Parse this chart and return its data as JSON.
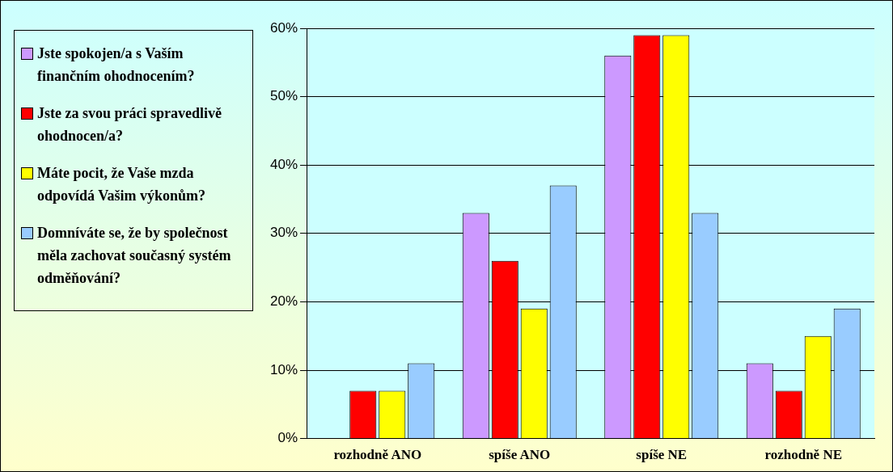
{
  "chart_data": {
    "type": "bar",
    "categories": [
      "rozhodně ANO",
      "spíše ANO",
      "spíše NE",
      "rozhodně NE"
    ],
    "series": [
      {
        "name": "Jste spokojen/a s Vaším finančním ohodnocením?",
        "color": "#cc99ff",
        "values": [
          0,
          33,
          56,
          11
        ]
      },
      {
        "name": "Jste za svou práci spravedlivě ohodnocen/a?",
        "color": "#ff0000",
        "values": [
          7,
          26,
          59,
          7
        ]
      },
      {
        "name": "Máte pocit, že Vaše mzda odpovídá Vašim výkonům?",
        "color": "#ffff00",
        "values": [
          7,
          19,
          59,
          15
        ]
      },
      {
        "name": "Domníváte se, že by společnost měla zachovat současný systém odměňování?",
        "color": "#99ccff",
        "values": [
          11,
          37,
          33,
          19
        ]
      }
    ],
    "ylim": [
      0,
      60
    ],
    "yticks": [
      {
        "value": 0,
        "label": "0%"
      },
      {
        "value": 10,
        "label": "10%"
      },
      {
        "value": 20,
        "label": "20%"
      },
      {
        "value": 30,
        "label": "30%"
      },
      {
        "value": 40,
        "label": "40%"
      },
      {
        "value": 50,
        "label": "50%"
      },
      {
        "value": 60,
        "label": "60%"
      }
    ],
    "grid": "y",
    "legend": "left"
  }
}
